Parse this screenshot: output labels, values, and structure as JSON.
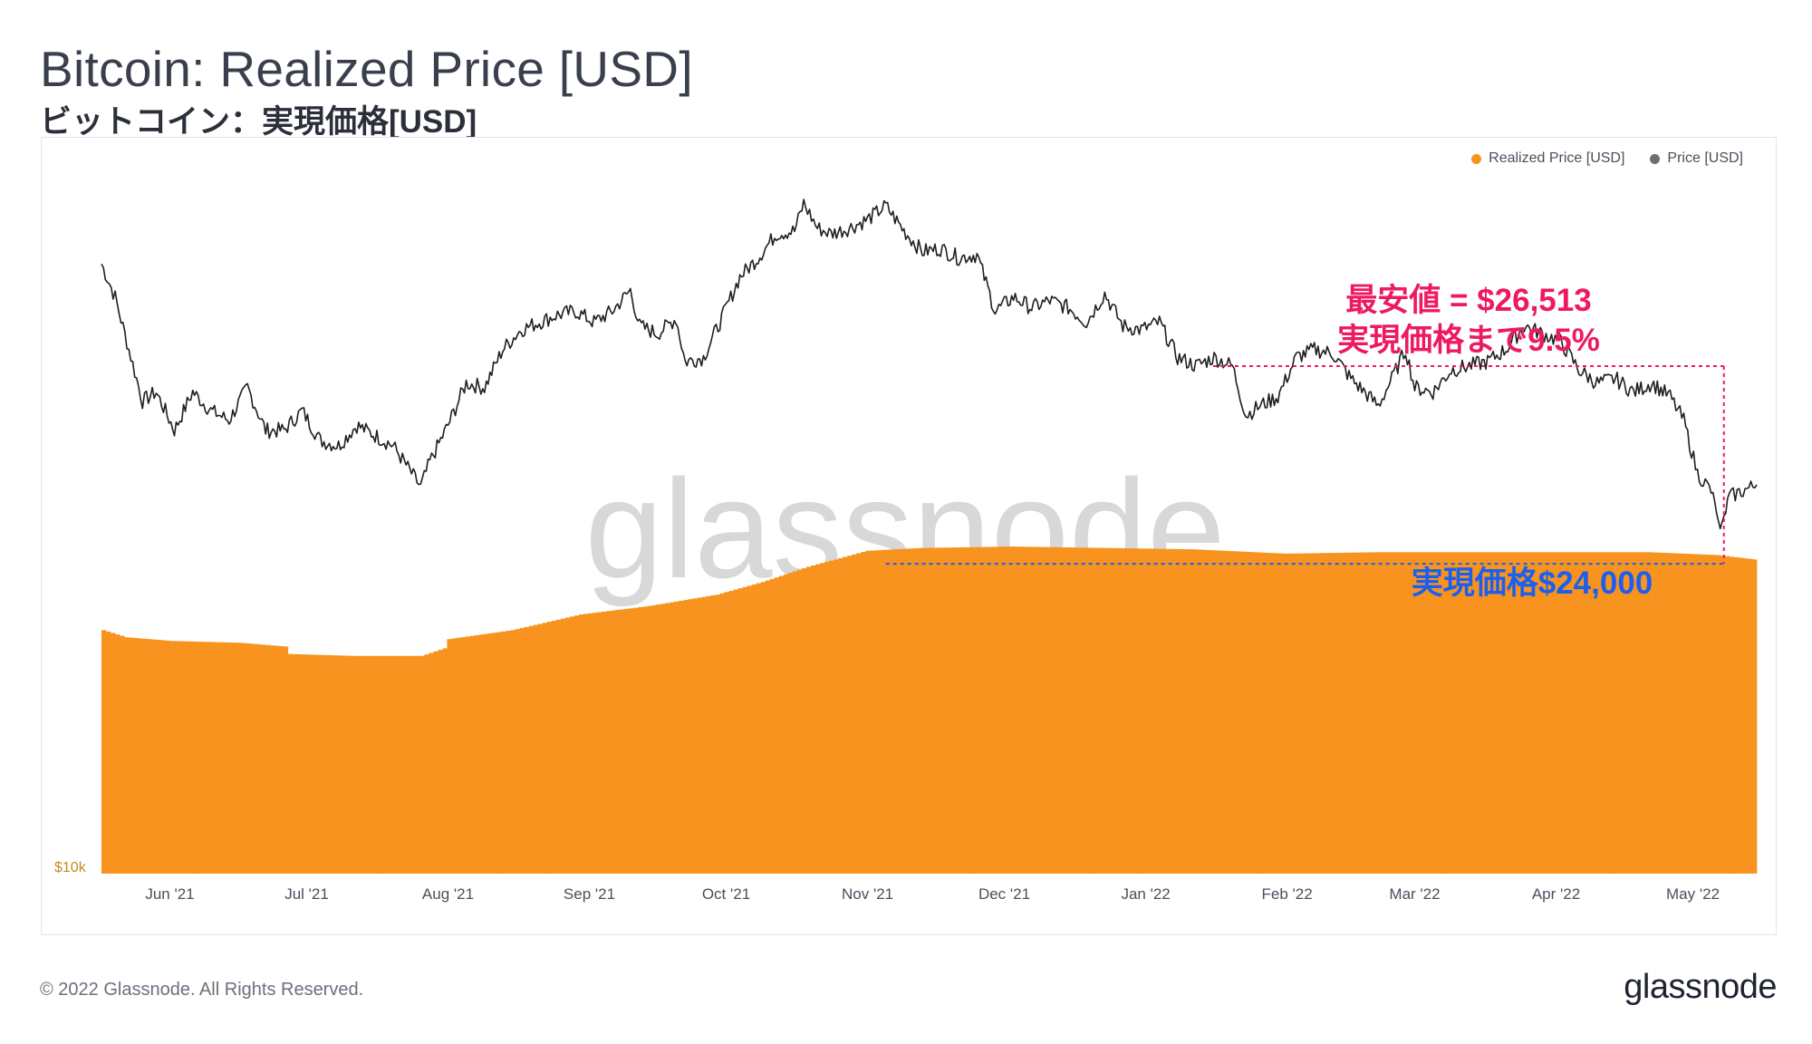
{
  "header": {
    "title": "Bitcoin: Realized Price [USD]",
    "subtitle": "ビットコイン：実現価格[USD]"
  },
  "legend": {
    "realized_label": "Realized Price [USD]",
    "price_label": "Price [USD]"
  },
  "annotations": {
    "low_line1": "最安値 = $26,513",
    "low_line2": "実現価格まで9.5%",
    "realized": "実現価格$24,000"
  },
  "footer": {
    "copyright": "© 2022 Glassnode. All Rights Reserved.",
    "logo": "glassnode"
  },
  "watermark": "glassnode",
  "colors": {
    "realized": "#f7931e",
    "price": "#1f1f1f",
    "annotation_red": "#ee1a5f",
    "annotation_blue": "#1b5ff0",
    "legend_price_dot": "#6e6e6e"
  },
  "chart_data": {
    "type": "bar+line",
    "title": "Bitcoin: Realized Price [USD]",
    "y_scale": "log",
    "ylim": [
      10000,
      80000
    ],
    "y_tick_labels": [
      {
        "value": 10000,
        "label": "$10k"
      }
    ],
    "x_range": [
      0,
      363
    ],
    "x_ticks": [
      {
        "label": "Jun '21",
        "day": 15
      },
      {
        "label": "Jul '21",
        "day": 45
      },
      {
        "label": "Aug '21",
        "day": 76
      },
      {
        "label": "Sep '21",
        "day": 107
      },
      {
        "label": "Oct '21",
        "day": 137
      },
      {
        "label": "Nov '21",
        "day": 168
      },
      {
        "label": "Dec '21",
        "day": 198
      },
      {
        "label": "Jan '22",
        "day": 229
      },
      {
        "label": "Feb '22",
        "day": 260
      },
      {
        "label": "Mar '22",
        "day": 288
      },
      {
        "label": "Apr '22",
        "day": 319
      },
      {
        "label": "May '22",
        "day": 349
      }
    ],
    "series": [
      {
        "name": "Realized Price [USD]",
        "kind": "bar",
        "points": [
          [
            0,
            19900
          ],
          [
            5,
            19500
          ],
          [
            15,
            19300
          ],
          [
            30,
            19200
          ],
          [
            40,
            19000
          ],
          [
            41,
            18600
          ],
          [
            55,
            18500
          ],
          [
            70,
            18500
          ],
          [
            75,
            18900
          ],
          [
            76,
            19400
          ],
          [
            90,
            19900
          ],
          [
            105,
            20800
          ],
          [
            120,
            21300
          ],
          [
            135,
            22000
          ],
          [
            145,
            22800
          ],
          [
            155,
            23800
          ],
          [
            168,
            24900
          ],
          [
            180,
            25100
          ],
          [
            200,
            25200
          ],
          [
            240,
            25000
          ],
          [
            260,
            24700
          ],
          [
            280,
            24800
          ],
          [
            300,
            24800
          ],
          [
            320,
            24800
          ],
          [
            340,
            24800
          ],
          [
            355,
            24600
          ],
          [
            363,
            24300
          ]
        ]
      },
      {
        "name": "Price [USD]",
        "kind": "line",
        "points": [
          [
            0,
            56000
          ],
          [
            3,
            51000
          ],
          [
            6,
            44000
          ],
          [
            9,
            38000
          ],
          [
            12,
            39000
          ],
          [
            16,
            35000
          ],
          [
            20,
            39000
          ],
          [
            24,
            37000
          ],
          [
            28,
            36000
          ],
          [
            32,
            39500
          ],
          [
            36,
            35000
          ],
          [
            40,
            35000
          ],
          [
            44,
            37000
          ],
          [
            48,
            34000
          ],
          [
            52,
            33500
          ],
          [
            56,
            35500
          ],
          [
            60,
            34500
          ],
          [
            64,
            33500
          ],
          [
            68,
            31000
          ],
          [
            70,
            29800
          ],
          [
            72,
            32000
          ],
          [
            76,
            35500
          ],
          [
            80,
            40000
          ],
          [
            84,
            39500
          ],
          [
            88,
            44000
          ],
          [
            92,
            46500
          ],
          [
            96,
            47500
          ],
          [
            100,
            48500
          ],
          [
            104,
            49000
          ],
          [
            108,
            47500
          ],
          [
            112,
            49000
          ],
          [
            116,
            52000
          ],
          [
            118,
            47000
          ],
          [
            122,
            46000
          ],
          [
            126,
            48000
          ],
          [
            128,
            42500
          ],
          [
            132,
            43000
          ],
          [
            136,
            48000
          ],
          [
            140,
            54000
          ],
          [
            144,
            57000
          ],
          [
            148,
            61000
          ],
          [
            152,
            61500
          ],
          [
            154,
            66500
          ],
          [
            157,
            62000
          ],
          [
            160,
            61000
          ],
          [
            164,
            62000
          ],
          [
            168,
            63500
          ],
          [
            172,
            66000
          ],
          [
            176,
            61500
          ],
          [
            180,
            58000
          ],
          [
            184,
            58500
          ],
          [
            188,
            57000
          ],
          [
            192,
            57500
          ],
          [
            196,
            49000
          ],
          [
            200,
            51000
          ],
          [
            204,
            49500
          ],
          [
            208,
            50500
          ],
          [
            212,
            49500
          ],
          [
            216,
            47500
          ],
          [
            220,
            51500
          ],
          [
            224,
            47000
          ],
          [
            228,
            46500
          ],
          [
            232,
            47500
          ],
          [
            236,
            43000
          ],
          [
            240,
            42000
          ],
          [
            244,
            43000
          ],
          [
            248,
            42000
          ],
          [
            251,
            36500
          ],
          [
            254,
            37500
          ],
          [
            258,
            38500
          ],
          [
            262,
            43000
          ],
          [
            266,
            44000
          ],
          [
            270,
            43500
          ],
          [
            274,
            40500
          ],
          [
            278,
            38500
          ],
          [
            280,
            37500
          ],
          [
            283,
            40500
          ],
          [
            286,
            44000
          ],
          [
            288,
            39500
          ],
          [
            292,
            39000
          ],
          [
            296,
            41500
          ],
          [
            300,
            42000
          ],
          [
            304,
            42500
          ],
          [
            308,
            44000
          ],
          [
            312,
            47000
          ],
          [
            316,
            46000
          ],
          [
            320,
            45000
          ],
          [
            324,
            41500
          ],
          [
            328,
            40000
          ],
          [
            332,
            40500
          ],
          [
            336,
            39000
          ],
          [
            340,
            40000
          ],
          [
            344,
            38500
          ],
          [
            347,
            36000
          ],
          [
            350,
            31000
          ],
          [
            353,
            29500
          ],
          [
            355,
            26513
          ],
          [
            357,
            29000
          ],
          [
            360,
            29500
          ],
          [
            363,
            30000
          ]
        ]
      }
    ],
    "annotation_values": {
      "low": 26513,
      "realized": 24000,
      "gap_percent": 9.5
    }
  }
}
